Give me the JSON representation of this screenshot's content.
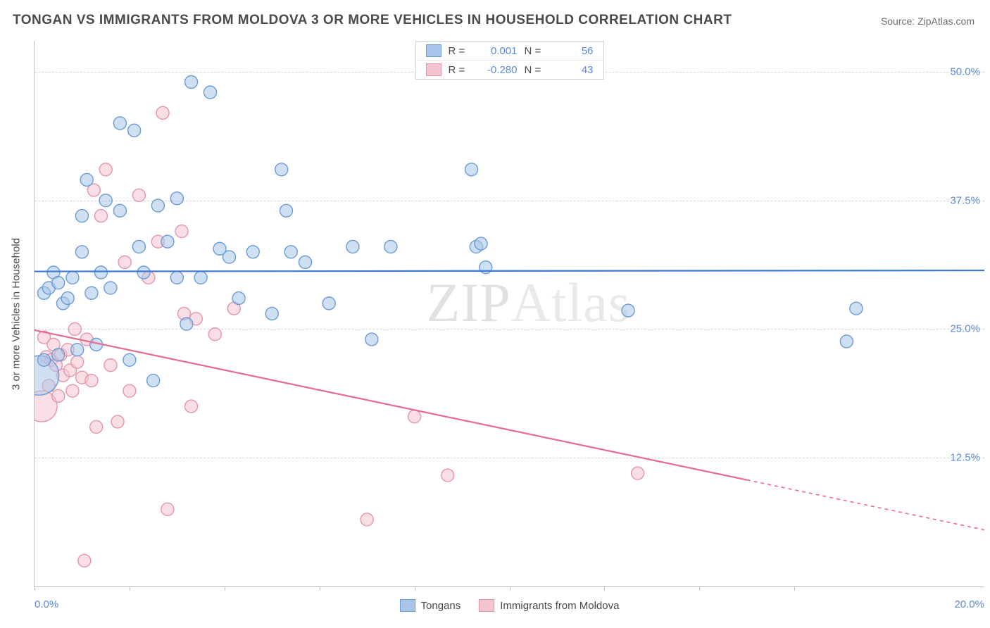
{
  "title": "TONGAN VS IMMIGRANTS FROM MOLDOVA 3 OR MORE VEHICLES IN HOUSEHOLD CORRELATION CHART",
  "source": "Source: ZipAtlas.com",
  "watermark_a": "ZIP",
  "watermark_b": "Atlas",
  "y_axis_title": "3 or more Vehicles in Household",
  "x_axis": {
    "min_label": "0.0%",
    "max_label": "20.0%",
    "min": 0.0,
    "max": 20.0,
    "ticks": [
      0,
      2,
      4,
      6,
      8,
      10,
      12,
      14,
      16
    ]
  },
  "y_axis": {
    "min": 0.0,
    "max": 53.0,
    "gridlines": [
      12.5,
      25.0,
      37.5,
      50.0
    ],
    "labels": [
      "12.5%",
      "25.0%",
      "37.5%",
      "50.0%"
    ]
  },
  "colors": {
    "series_a_fill": "#a9c6ea",
    "series_a_stroke": "#6a9bd8",
    "series_a_line": "#3d78d6",
    "series_b_fill": "#f4c4cf",
    "series_b_stroke": "#e495aa",
    "series_b_line": "#e76a8f",
    "grid": "#d5d5d5",
    "axis": "#bdbdbd",
    "text": "#4a4a4a",
    "tick_label": "#5c8bd6"
  },
  "legend_top": {
    "rows": [
      {
        "series": "a",
        "r_label": "R =",
        "r_value": "0.001",
        "n_label": "N =",
        "n_value": "56"
      },
      {
        "series": "b",
        "r_label": "R =",
        "r_value": "-0.280",
        "n_label": "N =",
        "n_value": "43"
      }
    ]
  },
  "legend_bottom": {
    "a": "Tongans",
    "b": "Immigrants from Moldova"
  },
  "trend_lines": {
    "a": {
      "y_at_xmin": 30.6,
      "y_at_xmax": 30.7
    },
    "b": {
      "y_at_xmin": 24.9,
      "y_at_xmax": 5.5,
      "solid_until_x": 15.0
    }
  },
  "marker_radius_default": 9,
  "marker_opacity": 0.55,
  "series_a_points": [
    {
      "x": 0.1,
      "y": 20.5,
      "r": 28
    },
    {
      "x": 0.2,
      "y": 22.0
    },
    {
      "x": 0.2,
      "y": 28.5
    },
    {
      "x": 0.3,
      "y": 29.0
    },
    {
      "x": 0.4,
      "y": 30.5
    },
    {
      "x": 0.5,
      "y": 22.5
    },
    {
      "x": 0.5,
      "y": 29.5
    },
    {
      "x": 0.6,
      "y": 27.5
    },
    {
      "x": 0.7,
      "y": 28.0
    },
    {
      "x": 0.8,
      "y": 30.0
    },
    {
      "x": 0.9,
      "y": 23.0
    },
    {
      "x": 1.0,
      "y": 32.5
    },
    {
      "x": 1.0,
      "y": 36.0
    },
    {
      "x": 1.1,
      "y": 39.5
    },
    {
      "x": 1.2,
      "y": 28.5
    },
    {
      "x": 1.3,
      "y": 23.5
    },
    {
      "x": 1.4,
      "y": 30.5
    },
    {
      "x": 1.5,
      "y": 37.5
    },
    {
      "x": 1.6,
      "y": 29.0
    },
    {
      "x": 1.8,
      "y": 36.5
    },
    {
      "x": 1.8,
      "y": 45.0
    },
    {
      "x": 2.0,
      "y": 22.0
    },
    {
      "x": 2.1,
      "y": 44.3
    },
    {
      "x": 2.2,
      "y": 33.0
    },
    {
      "x": 2.3,
      "y": 30.5
    },
    {
      "x": 2.5,
      "y": 20.0
    },
    {
      "x": 2.6,
      "y": 37.0
    },
    {
      "x": 2.8,
      "y": 33.5
    },
    {
      "x": 3.0,
      "y": 30.0
    },
    {
      "x": 3.0,
      "y": 37.7
    },
    {
      "x": 3.2,
      "y": 25.5
    },
    {
      "x": 3.3,
      "y": 49.0
    },
    {
      "x": 3.5,
      "y": 30.0
    },
    {
      "x": 3.7,
      "y": 48.0
    },
    {
      "x": 3.9,
      "y": 32.8
    },
    {
      "x": 4.1,
      "y": 32.0
    },
    {
      "x": 4.3,
      "y": 28.0
    },
    {
      "x": 4.6,
      "y": 32.5
    },
    {
      "x": 5.0,
      "y": 26.5
    },
    {
      "x": 5.2,
      "y": 40.5
    },
    {
      "x": 5.3,
      "y": 36.5
    },
    {
      "x": 5.4,
      "y": 32.5
    },
    {
      "x": 5.7,
      "y": 31.5
    },
    {
      "x": 6.2,
      "y": 27.5
    },
    {
      "x": 6.7,
      "y": 33.0
    },
    {
      "x": 7.1,
      "y": 24.0
    },
    {
      "x": 7.5,
      "y": 33.0
    },
    {
      "x": 9.2,
      "y": 40.5
    },
    {
      "x": 9.3,
      "y": 33.0
    },
    {
      "x": 9.4,
      "y": 33.3
    },
    {
      "x": 9.5,
      "y": 31.0
    },
    {
      "x": 12.5,
      "y": 26.8
    },
    {
      "x": 17.3,
      "y": 27.0
    },
    {
      "x": 17.1,
      "y": 23.8
    }
  ],
  "series_b_points": [
    {
      "x": 0.15,
      "y": 17.5,
      "r": 22
    },
    {
      "x": 0.2,
      "y": 24.2
    },
    {
      "x": 0.25,
      "y": 22.3
    },
    {
      "x": 0.3,
      "y": 19.5
    },
    {
      "x": 0.35,
      "y": 22.0
    },
    {
      "x": 0.4,
      "y": 23.5
    },
    {
      "x": 0.45,
      "y": 21.5
    },
    {
      "x": 0.5,
      "y": 18.5
    },
    {
      "x": 0.55,
      "y": 22.5
    },
    {
      "x": 0.6,
      "y": 20.5
    },
    {
      "x": 0.7,
      "y": 23.0
    },
    {
      "x": 0.75,
      "y": 21.0
    },
    {
      "x": 0.8,
      "y": 19.0
    },
    {
      "x": 0.85,
      "y": 25.0
    },
    {
      "x": 0.9,
      "y": 21.8
    },
    {
      "x": 1.0,
      "y": 20.3
    },
    {
      "x": 1.05,
      "y": 2.5
    },
    {
      "x": 1.1,
      "y": 24.0
    },
    {
      "x": 1.2,
      "y": 20.0
    },
    {
      "x": 1.25,
      "y": 38.5
    },
    {
      "x": 1.3,
      "y": 15.5
    },
    {
      "x": 1.4,
      "y": 36.0
    },
    {
      "x": 1.5,
      "y": 40.5
    },
    {
      "x": 1.6,
      "y": 21.5
    },
    {
      "x": 1.75,
      "y": 16.0
    },
    {
      "x": 1.9,
      "y": 31.5
    },
    {
      "x": 2.0,
      "y": 19.0
    },
    {
      "x": 2.2,
      "y": 38.0
    },
    {
      "x": 2.4,
      "y": 30.0
    },
    {
      "x": 2.6,
      "y": 33.5
    },
    {
      "x": 2.7,
      "y": 46.0
    },
    {
      "x": 2.8,
      "y": 7.5
    },
    {
      "x": 3.1,
      "y": 34.5
    },
    {
      "x": 3.15,
      "y": 26.5
    },
    {
      "x": 3.3,
      "y": 17.5
    },
    {
      "x": 3.4,
      "y": 26.0
    },
    {
      "x": 3.8,
      "y": 24.5
    },
    {
      "x": 4.2,
      "y": 27.0
    },
    {
      "x": 7.0,
      "y": 6.5
    },
    {
      "x": 8.0,
      "y": 16.5
    },
    {
      "x": 8.7,
      "y": 10.8
    },
    {
      "x": 12.7,
      "y": 11.0
    }
  ]
}
